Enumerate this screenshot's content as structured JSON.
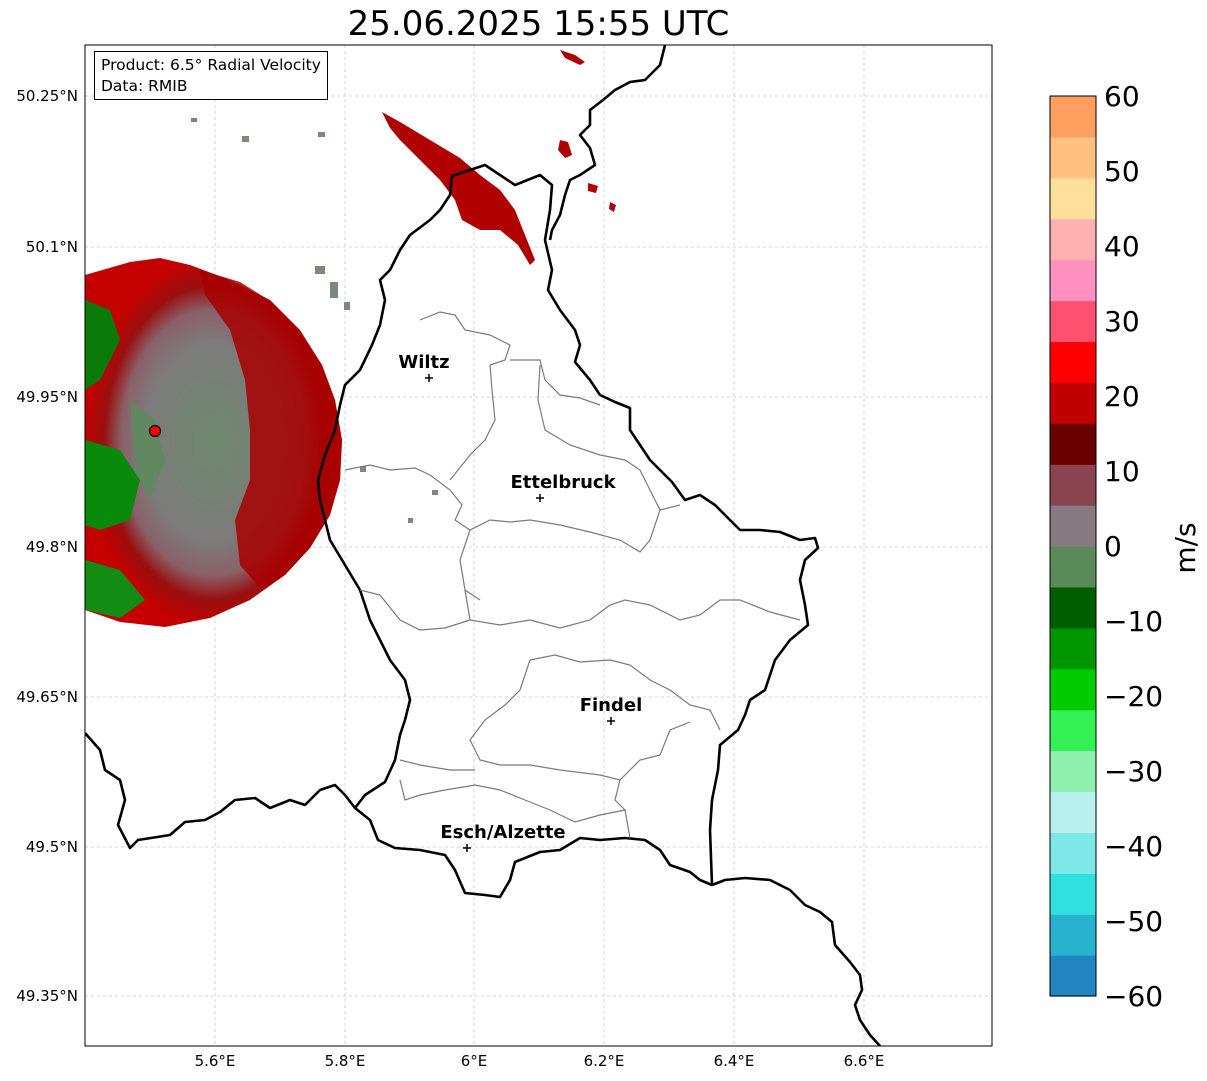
{
  "title": "25.06.2025 15:55 UTC",
  "info": {
    "product": "Product: 6.5° Radial Velocity",
    "data": "Data: RMIB"
  },
  "lat_ticks": [
    "50.25°N",
    "50.1°N",
    "49.95°N",
    "49.8°N",
    "49.65°N",
    "49.5°N",
    "49.35°N"
  ],
  "lon_ticks": [
    "5.6°E",
    "5.8°E",
    "6°E",
    "6.2°E",
    "6.4°E",
    "6.6°E"
  ],
  "cities": [
    {
      "name": "Wiltz",
      "lon": 5.93,
      "lat": 49.97
    },
    {
      "name": "Ettelbruck",
      "lon": 6.1,
      "lat": 49.85
    },
    {
      "name": "Findel",
      "lon": 6.21,
      "lat": 49.627
    },
    {
      "name": "Esch/Alzette",
      "lon": 5.99,
      "lat": 49.5
    }
  ],
  "radar_site": {
    "lon": 5.505,
    "lat": 49.915
  },
  "colorbar": {
    "label": "m/s",
    "ticks": [
      "60",
      "50",
      "40",
      "30",
      "20",
      "10",
      "0",
      "−10",
      "−20",
      "−30",
      "−40",
      "−50",
      "−60"
    ],
    "min": -60,
    "max": 60,
    "colors": [
      "#2185c0",
      "#29b2d0",
      "#30e0e0",
      "#7ee8e8",
      "#b8f0f0",
      "#90f0b0",
      "#33f055",
      "#00cc00",
      "#009600",
      "#005e00",
      "#5a8a5a",
      "#877a80",
      "#8a4450",
      "#6a0000",
      "#c00000",
      "#ff0000",
      "#ff5070",
      "#ff90c0",
      "#ffb0b0",
      "#ffe09a",
      "#ffc080",
      "#ffa060"
    ]
  }
}
